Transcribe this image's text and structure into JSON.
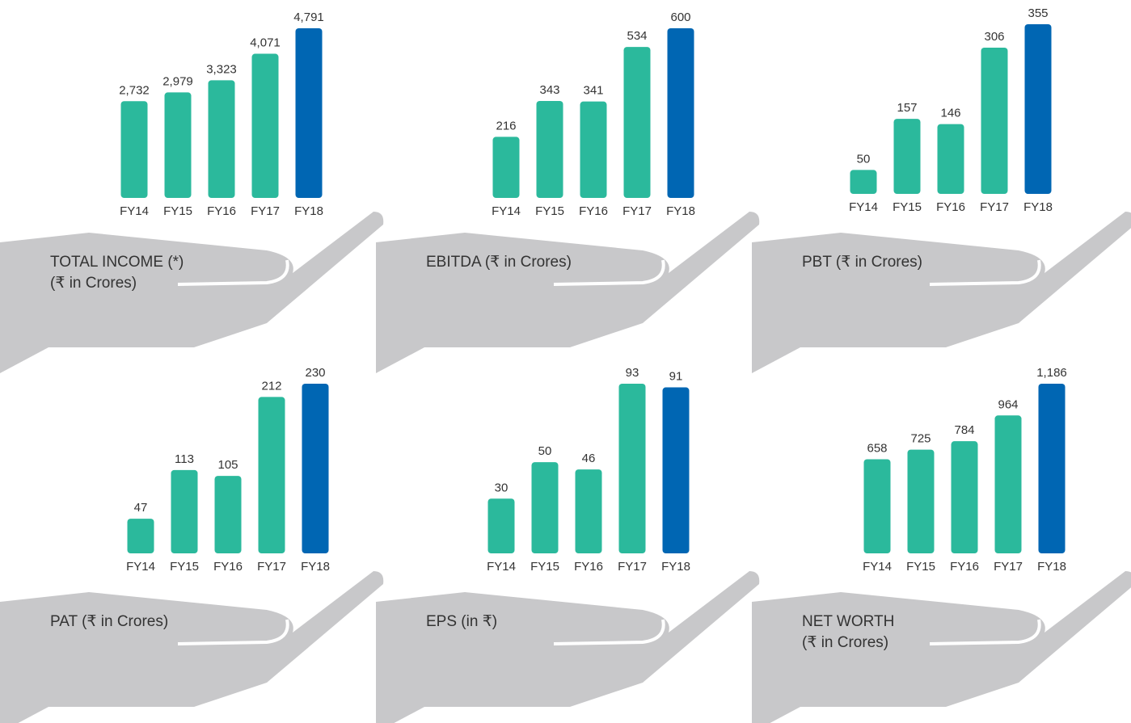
{
  "chart_data": [
    {
      "type": "bar",
      "title": "TOTAL INCOME (*)",
      "subtitle": "(₹ in Crores)",
      "categories": [
        "FY14",
        "FY15",
        "FY16",
        "FY17",
        "FY18"
      ],
      "values": [
        2732,
        2979,
        3323,
        4071,
        4791
      ],
      "value_labels": [
        "2,732",
        "2,979",
        "3,323",
        "4,071",
        "4,791"
      ],
      "colors": [
        "#2bb99c",
        "#2bb99c",
        "#2bb99c",
        "#2bb99c",
        "#0066b3"
      ]
    },
    {
      "type": "bar",
      "title": "EBITDA (₹ in Crores)",
      "categories": [
        "FY14",
        "FY15",
        "FY16",
        "FY17",
        "FY18"
      ],
      "values": [
        216,
        343,
        341,
        534,
        600
      ],
      "colors": [
        "#2bb99c",
        "#2bb99c",
        "#2bb99c",
        "#2bb99c",
        "#0066b3"
      ]
    },
    {
      "type": "bar",
      "title": "PBT (₹ in Crores)",
      "categories": [
        "FY14",
        "FY15",
        "FY16",
        "FY17",
        "FY18"
      ],
      "values": [
        50,
        157,
        146,
        306,
        355
      ],
      "colors": [
        "#2bb99c",
        "#2bb99c",
        "#2bb99c",
        "#2bb99c",
        "#0066b3"
      ]
    },
    {
      "type": "bar",
      "title": "PAT (₹ in Crores)",
      "categories": [
        "FY14",
        "FY15",
        "FY16",
        "FY17",
        "FY18"
      ],
      "values": [
        47,
        113,
        105,
        212,
        230
      ],
      "colors": [
        "#2bb99c",
        "#2bb99c",
        "#2bb99c",
        "#2bb99c",
        "#0066b3"
      ]
    },
    {
      "type": "bar",
      "title": "EPS (in ₹)",
      "categories": [
        "FY14",
        "FY15",
        "FY16",
        "FY17",
        "FY18"
      ],
      "values": [
        30,
        50,
        46,
        93,
        91
      ],
      "colors": [
        "#2bb99c",
        "#2bb99c",
        "#2bb99c",
        "#2bb99c",
        "#0066b3"
      ]
    },
    {
      "type": "bar",
      "title": "NET WORTH",
      "subtitle": "(₹ in Crores)",
      "categories": [
        "FY14",
        "FY15",
        "FY16",
        "FY17",
        "FY18"
      ],
      "values": [
        658,
        725,
        784,
        964,
        1186
      ],
      "value_labels": [
        "658",
        "725",
        "784",
        "964",
        "1,186"
      ],
      "colors": [
        "#2bb99c",
        "#2bb99c",
        "#2bb99c",
        "#2bb99c",
        "#0066b3"
      ]
    }
  ]
}
